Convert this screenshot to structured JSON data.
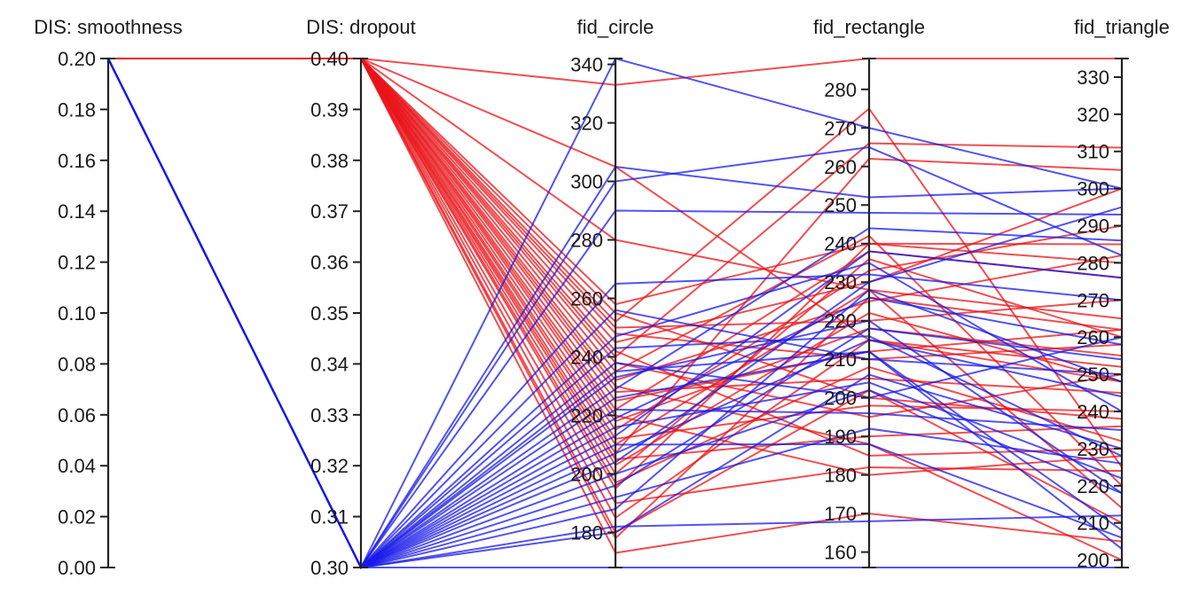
{
  "chart_data": {
    "type": "parallel_coordinates",
    "colors": {
      "red_group": "#e8141a",
      "blue_group": "#1a1ae8",
      "axis": "#222222"
    },
    "axes": [
      {
        "key": "smoothness",
        "label": "DIS: smoothness",
        "range": [
          0,
          0.2
        ],
        "ticks": [
          "0.00",
          "0.02",
          "0.04",
          "0.06",
          "0.08",
          "0.10",
          "0.12",
          "0.14",
          "0.16",
          "0.18",
          "0.20"
        ]
      },
      {
        "key": "dropout",
        "label": "DIS: dropout",
        "range": [
          0.3,
          0.4
        ],
        "ticks": [
          "0.30",
          "0.31",
          "0.32",
          "0.33",
          "0.34",
          "0.35",
          "0.36",
          "0.37",
          "0.38",
          "0.39",
          "0.40"
        ]
      },
      {
        "key": "fid_circle",
        "label": "fid_circle",
        "range": [
          168,
          342
        ],
        "ticks": [
          "180",
          "200",
          "220",
          "240",
          "260",
          "280",
          "300",
          "320",
          "340"
        ]
      },
      {
        "key": "fid_rectangle",
        "label": "fid_rectangle",
        "range": [
          156,
          288
        ],
        "ticks": [
          "160",
          "170",
          "180",
          "190",
          "200",
          "210",
          "220",
          "230",
          "240",
          "250",
          "260",
          "270",
          "280"
        ]
      },
      {
        "key": "fid_triangle",
        "label": "fid_triangle",
        "range": [
          198,
          335
        ],
        "ticks": [
          "200",
          "210",
          "220",
          "230",
          "240",
          "250",
          "260",
          "270",
          "280",
          "290",
          "300",
          "310",
          "320",
          "330"
        ]
      }
    ],
    "series": [
      {
        "group": "red",
        "values": [
          0.2,
          0.4,
          333,
          288,
          335
        ]
      },
      {
        "group": "red",
        "values": [
          0.2,
          0.4,
          280,
          228,
          265
        ]
      },
      {
        "group": "red",
        "values": [
          0.2,
          0.4,
          305,
          215,
          248
        ]
      },
      {
        "group": "red",
        "values": [
          0.2,
          0.4,
          258,
          240,
          280
        ]
      },
      {
        "group": "red",
        "values": [
          0.2,
          0.4,
          255,
          200,
          238
        ]
      },
      {
        "group": "red",
        "values": [
          0.2,
          0.4,
          252,
          275,
          225
        ]
      },
      {
        "group": "red",
        "values": [
          0.2,
          0.4,
          250,
          220,
          270
        ]
      },
      {
        "group": "red",
        "values": [
          0.2,
          0.4,
          248,
          210,
          258
        ]
      },
      {
        "group": "red",
        "values": [
          0.2,
          0.4,
          245,
          230,
          300
        ]
      },
      {
        "group": "red",
        "values": [
          0.2,
          0.4,
          242,
          185,
          230
        ]
      },
      {
        "group": "red",
        "values": [
          0.2,
          0.4,
          238,
          195,
          250
        ]
      },
      {
        "group": "red",
        "values": [
          0.2,
          0.4,
          235,
          242,
          220
        ]
      },
      {
        "group": "red",
        "values": [
          0.2,
          0.4,
          232,
          225,
          282
        ]
      },
      {
        "group": "red",
        "values": [
          0.2,
          0.4,
          228,
          205,
          245
        ]
      },
      {
        "group": "red",
        "values": [
          0.2,
          0.4,
          225,
          212,
          262
        ]
      },
      {
        "group": "red",
        "values": [
          0.2,
          0.4,
          222,
          238,
          276
        ]
      },
      {
        "group": "red",
        "values": [
          0.2,
          0.4,
          220,
          180,
          228
        ]
      },
      {
        "group": "red",
        "values": [
          0.2,
          0.4,
          218,
          218,
          255
        ]
      },
      {
        "group": "red",
        "values": [
          0.2,
          0.4,
          215,
          233,
          290
        ]
      },
      {
        "group": "red",
        "values": [
          0.2,
          0.4,
          212,
          198,
          240
        ]
      },
      {
        "group": "red",
        "values": [
          0.2,
          0.4,
          210,
          228,
          214
        ]
      },
      {
        "group": "red",
        "values": [
          0.2,
          0.4,
          207,
          262,
          305
        ]
      },
      {
        "group": "red",
        "values": [
          0.2,
          0.4,
          205,
          190,
          236
        ]
      },
      {
        "group": "red",
        "values": [
          0.2,
          0.4,
          203,
          222,
          248
        ]
      },
      {
        "group": "red",
        "values": [
          0.2,
          0.4,
          200,
          236,
          260
        ]
      },
      {
        "group": "red",
        "values": [
          0.2,
          0.4,
          197,
          208,
          232
        ]
      },
      {
        "group": "red",
        "values": [
          0.2,
          0.4,
          195,
          240,
          285
        ]
      },
      {
        "group": "red",
        "values": [
          0.2,
          0.4,
          190,
          182,
          224
        ]
      },
      {
        "group": "red",
        "values": [
          0.2,
          0.4,
          185,
          215,
          252
        ]
      },
      {
        "group": "red",
        "values": [
          0.2,
          0.4,
          180,
          202,
          210
        ]
      },
      {
        "group": "red",
        "values": [
          0.2,
          0.4,
          178,
          226,
          262
        ]
      },
      {
        "group": "red",
        "values": [
          0.2,
          0.4,
          173,
          170,
          205
        ]
      },
      {
        "group": "red",
        "values": [
          0.2,
          0.4,
          240,
          266,
          311
        ]
      },
      {
        "group": "red",
        "values": [
          0.2,
          0.4,
          230,
          188,
          200
        ]
      },
      {
        "group": "blue",
        "values": [
          0.2,
          0.3,
          342,
          270,
          300
        ]
      },
      {
        "group": "blue",
        "values": [
          0.2,
          0.3,
          305,
          252,
          300
        ]
      },
      {
        "group": "blue",
        "values": [
          0.2,
          0.3,
          300,
          265,
          282
        ]
      },
      {
        "group": "blue",
        "values": [
          0.2,
          0.3,
          290,
          248,
          293
        ]
      },
      {
        "group": "blue",
        "values": [
          0.2,
          0.3,
          265,
          232,
          270
        ]
      },
      {
        "group": "blue",
        "values": [
          0.2,
          0.3,
          256,
          210,
          250
        ]
      },
      {
        "group": "blue",
        "values": [
          0.2,
          0.3,
          247,
          235,
          240
        ]
      },
      {
        "group": "blue",
        "values": [
          0.2,
          0.3,
          243,
          216,
          228
        ]
      },
      {
        "group": "blue",
        "values": [
          0.2,
          0.3,
          238,
          200,
          260
        ]
      },
      {
        "group": "blue",
        "values": [
          0.2,
          0.3,
          233,
          220,
          218
        ]
      },
      {
        "group": "blue",
        "values": [
          0.2,
          0.3,
          229,
          244,
          286
        ]
      },
      {
        "group": "blue",
        "values": [
          0.2,
          0.3,
          226,
          212,
          208
        ]
      },
      {
        "group": "blue",
        "values": [
          0.2,
          0.3,
          222,
          196,
          235
        ]
      },
      {
        "group": "blue",
        "values": [
          0.2,
          0.3,
          219,
          226,
          258
        ]
      },
      {
        "group": "blue",
        "values": [
          0.2,
          0.3,
          216,
          204,
          222
        ]
      },
      {
        "group": "blue",
        "values": [
          0.2,
          0.3,
          213,
          238,
          276
        ]
      },
      {
        "group": "blue",
        "values": [
          0.2,
          0.3,
          210,
          188,
          206
        ]
      },
      {
        "group": "blue",
        "values": [
          0.2,
          0.3,
          207,
          215,
          244
        ]
      },
      {
        "group": "blue",
        "values": [
          0.2,
          0.3,
          204,
          230,
          295
        ]
      },
      {
        "group": "blue",
        "values": [
          0.2,
          0.3,
          200,
          202,
          218
        ]
      },
      {
        "group": "blue",
        "values": [
          0.2,
          0.3,
          196,
          218,
          254
        ]
      },
      {
        "group": "blue",
        "values": [
          0.2,
          0.3,
          192,
          192,
          226
        ]
      },
      {
        "group": "blue",
        "values": [
          0.2,
          0.3,
          188,
          228,
          248
        ]
      },
      {
        "group": "blue",
        "values": [
          0.2,
          0.3,
          182,
          168,
          212
        ]
      },
      {
        "group": "blue",
        "values": [
          0.2,
          0.3,
          180,
          206,
          230
        ]
      },
      {
        "group": "blue",
        "values": [
          0.2,
          0.3,
          235,
          212,
          203
        ]
      },
      {
        "group": "blue",
        "values": [
          0.2,
          0.3,
          168,
          156,
          198
        ]
      }
    ]
  }
}
